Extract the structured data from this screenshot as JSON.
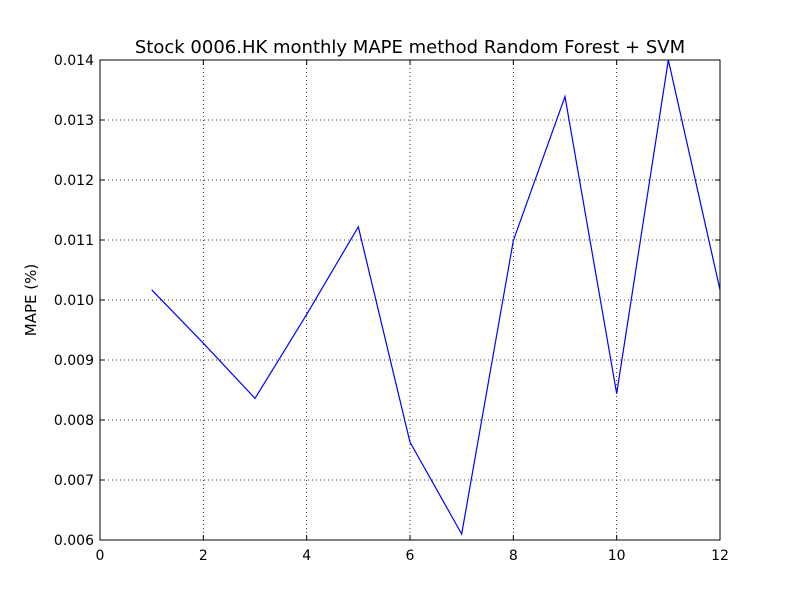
{
  "chart_data": {
    "type": "line",
    "title": "Stock 0006.HK monthly MAPE method Random Forest + SVM",
    "xlabel": "",
    "ylabel": "MAPE (%)",
    "xlim": [
      0,
      12
    ],
    "ylim": [
      0.006,
      0.014
    ],
    "x_ticks": [
      0,
      2,
      4,
      6,
      8,
      10,
      12
    ],
    "x_tick_labels": [
      "0",
      "2",
      "4",
      "6",
      "8",
      "10",
      "12"
    ],
    "y_ticks": [
      0.006,
      0.007,
      0.008,
      0.009,
      0.01,
      0.011,
      0.012,
      0.013,
      0.014
    ],
    "y_tick_labels": [
      "0.006",
      "0.007",
      "0.008",
      "0.009",
      "0.010",
      "0.011",
      "0.012",
      "0.013",
      "0.014"
    ],
    "grid": true,
    "series": [
      {
        "color": "#0000ff",
        "x": [
          1,
          2,
          3,
          4,
          5,
          6,
          7,
          8,
          9,
          10,
          11,
          12
        ],
        "values": [
          0.01017,
          0.00928,
          0.00836,
          0.00976,
          0.01122,
          0.00763,
          0.0061,
          0.01099,
          0.01339,
          0.00844,
          0.014,
          0.01017
        ]
      }
    ]
  }
}
